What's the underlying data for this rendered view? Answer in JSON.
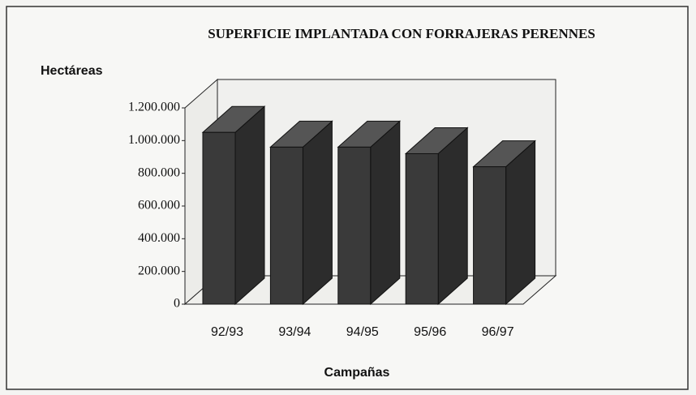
{
  "chart_data": {
    "type": "bar3d",
    "title": "SUPERFICIE IMPLANTADA CON FORRAJERAS PERENNES",
    "y_label": "Hectáreas",
    "x_label": "Campañas",
    "categories": [
      "92/93",
      "93/94",
      "94/95",
      "95/96",
      "96/97"
    ],
    "values": [
      1050000,
      960000,
      960000,
      920000,
      840000
    ],
    "color": "#3a3a3a",
    "ylim": [
      0,
      1200000
    ],
    "yticks": [
      0,
      {
        "value": 200000,
        "label": "200.000"
      },
      {
        "value": 400000,
        "label": "400.000"
      },
      {
        "value": 600000,
        "label": "600.000"
      },
      {
        "value": 800000,
        "label": "800.000"
      },
      {
        "value": 1000000,
        "label": "1.000.000"
      },
      {
        "value": 1200000,
        "label": "1.200.000"
      }
    ]
  }
}
